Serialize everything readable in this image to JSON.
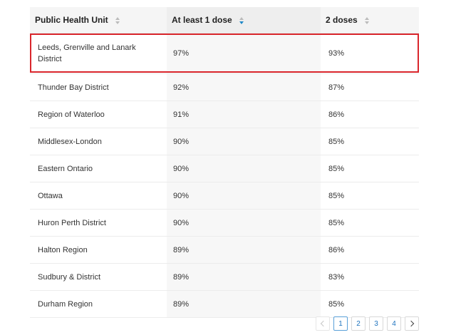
{
  "table": {
    "headers": [
      {
        "label": "Public Health Unit",
        "sort": "none"
      },
      {
        "label": "At least 1 dose",
        "sort": "desc"
      },
      {
        "label": "2 doses",
        "sort": "none"
      }
    ],
    "rows": [
      {
        "unit": "Leeds, Grenville and Lanark District",
        "one_dose": "97%",
        "two_doses": "93%"
      },
      {
        "unit": "Thunder Bay District",
        "one_dose": "92%",
        "two_doses": "87%"
      },
      {
        "unit": "Region of Waterloo",
        "one_dose": "91%",
        "two_doses": "86%"
      },
      {
        "unit": "Middlesex-London",
        "one_dose": "90%",
        "two_doses": "85%"
      },
      {
        "unit": "Eastern Ontario",
        "one_dose": "90%",
        "two_doses": "85%"
      },
      {
        "unit": "Ottawa",
        "one_dose": "90%",
        "two_doses": "85%"
      },
      {
        "unit": "Huron Perth District",
        "one_dose": "90%",
        "two_doses": "85%"
      },
      {
        "unit": "Halton Region",
        "one_dose": "89%",
        "two_doses": "86%"
      },
      {
        "unit": "Sudbury & District",
        "one_dose": "89%",
        "two_doses": "83%"
      },
      {
        "unit": "Durham Region",
        "one_dose": "89%",
        "two_doses": "85%"
      }
    ]
  },
  "pagination": {
    "pages": [
      "1",
      "2",
      "3",
      "4"
    ],
    "current": "1"
  },
  "colors": {
    "highlight_border": "#d9262c",
    "sort_active": "#1e88c7",
    "link": "#1e73be"
  }
}
